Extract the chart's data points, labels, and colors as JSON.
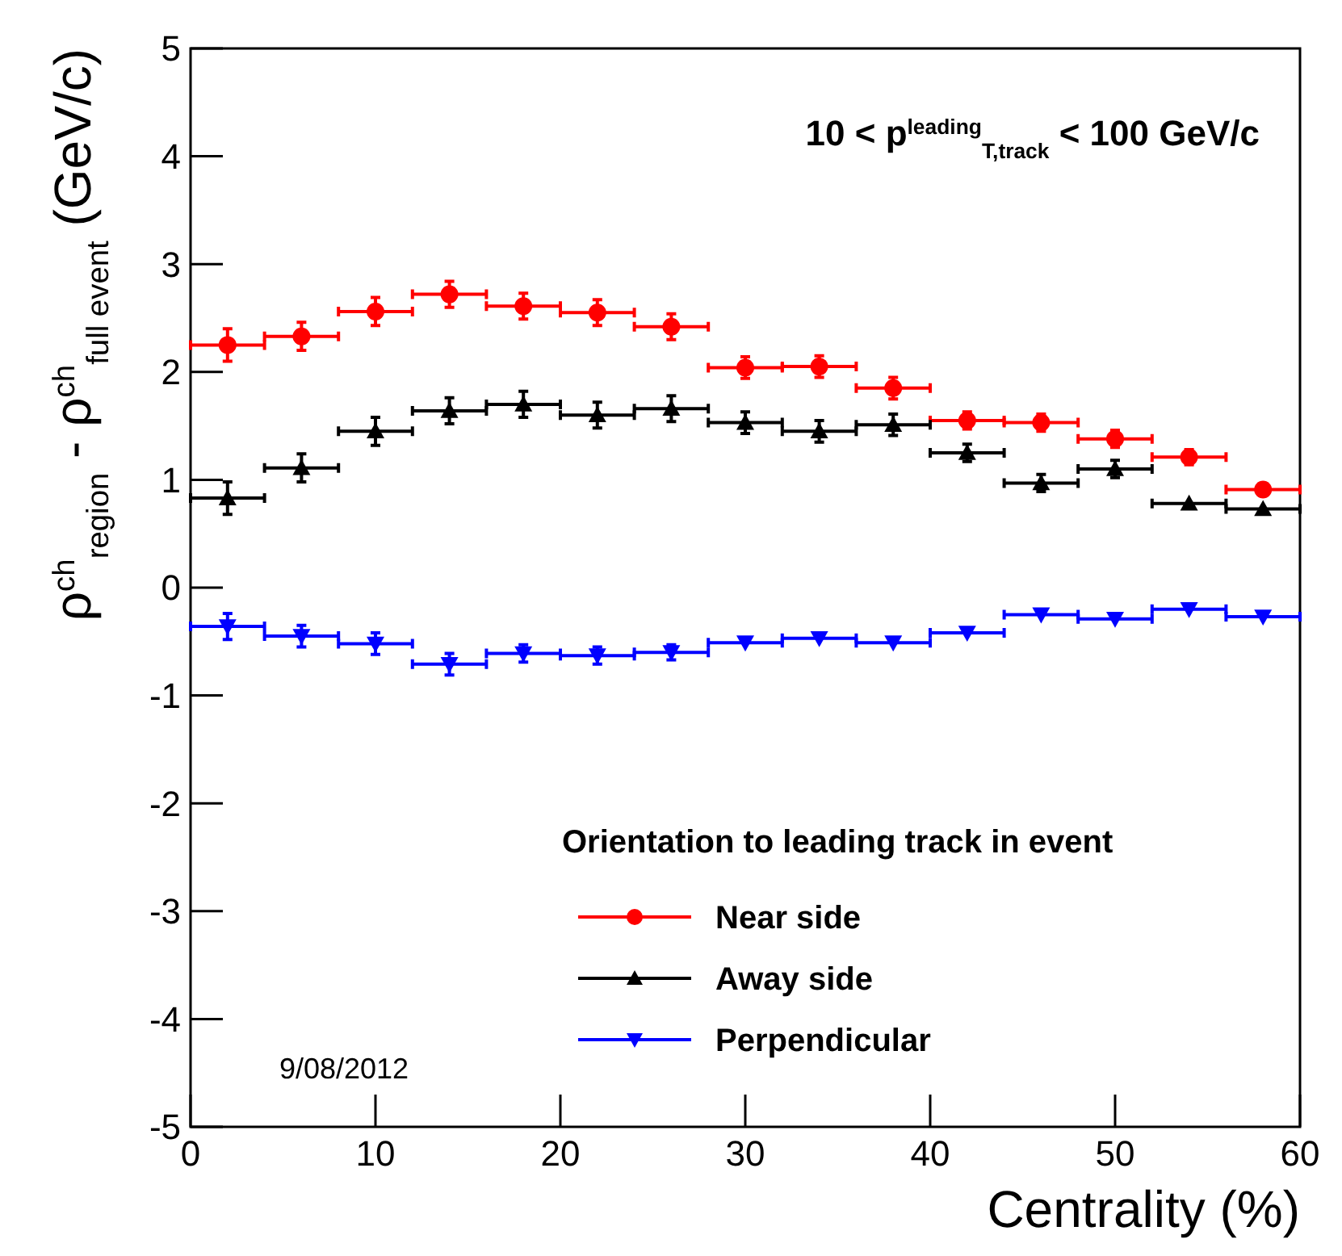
{
  "chart_data": {
    "type": "scatter",
    "xlabel": "Centrality (%)",
    "ylabel": "ρ$^{ch}$$_{region}$ - ρ$^{ch}$$_{full event}$ (GeV/c)",
    "legend_title": "Orientation to leading track in event",
    "legend": "bottom right",
    "grid": false,
    "annotations": [
      "10 < p$^{leading}$$_{T,track}$ < 100 GeV/c",
      "9/08/2012"
    ],
    "x": [
      2,
      6,
      10,
      14,
      18,
      22,
      26,
      30,
      34,
      38,
      42,
      46,
      50,
      54,
      58
    ],
    "xlim": [
      0,
      60
    ],
    "xticks": [
      0,
      10,
      20,
      30,
      40,
      50,
      60
    ],
    "ylim": [
      -5,
      5
    ],
    "yticks": [
      -5,
      -4,
      -3,
      -2,
      -1,
      0,
      1,
      2,
      3,
      4,
      5
    ],
    "series": [
      {
        "name": "Near side",
        "color": "#ff0000",
        "marker": "circle",
        "values": [
          2.25,
          2.33,
          2.56,
          2.72,
          2.61,
          2.55,
          2.42,
          2.04,
          2.05,
          1.85,
          1.55,
          1.53,
          1.38,
          1.21,
          0.91
        ],
        "errors": [
          0.15,
          0.13,
          0.13,
          0.12,
          0.12,
          0.12,
          0.12,
          0.1,
          0.1,
          0.1,
          0.08,
          0.08,
          0.08,
          0.07,
          null
        ],
        "xerrors": [
          2,
          2,
          2,
          2,
          2,
          2,
          2,
          2,
          2,
          2,
          2,
          2,
          2,
          2,
          2
        ]
      },
      {
        "name": "Away side",
        "color": "#000000",
        "marker": "triangle",
        "values": [
          0.83,
          1.11,
          1.45,
          1.64,
          1.7,
          1.6,
          1.66,
          1.53,
          1.45,
          1.51,
          1.25,
          0.97,
          1.1,
          0.78,
          0.73
        ],
        "errors": [
          0.15,
          0.13,
          0.13,
          0.12,
          0.12,
          0.12,
          0.12,
          0.1,
          0.1,
          0.1,
          0.08,
          0.08,
          0.08,
          null,
          null
        ],
        "xerrors": [
          2,
          2,
          2,
          2,
          2,
          2,
          2,
          2,
          2,
          2,
          2,
          2,
          2,
          2,
          2
        ]
      },
      {
        "name": "Perpendicular",
        "color": "#0000ff",
        "marker": "triangle-down",
        "values": [
          -0.36,
          -0.45,
          -0.52,
          -0.71,
          -0.61,
          -0.63,
          -0.6,
          -0.51,
          -0.47,
          -0.51,
          -0.42,
          -0.25,
          -0.29,
          -0.2,
          -0.27
        ],
        "errors": [
          0.12,
          0.1,
          0.1,
          0.1,
          0.08,
          0.08,
          0.07,
          null,
          null,
          null,
          null,
          null,
          null,
          null,
          null
        ],
        "xerrors": [
          2,
          2,
          2,
          2,
          2,
          2,
          2,
          2,
          2,
          2,
          2,
          2,
          2,
          2,
          2
        ]
      }
    ]
  }
}
